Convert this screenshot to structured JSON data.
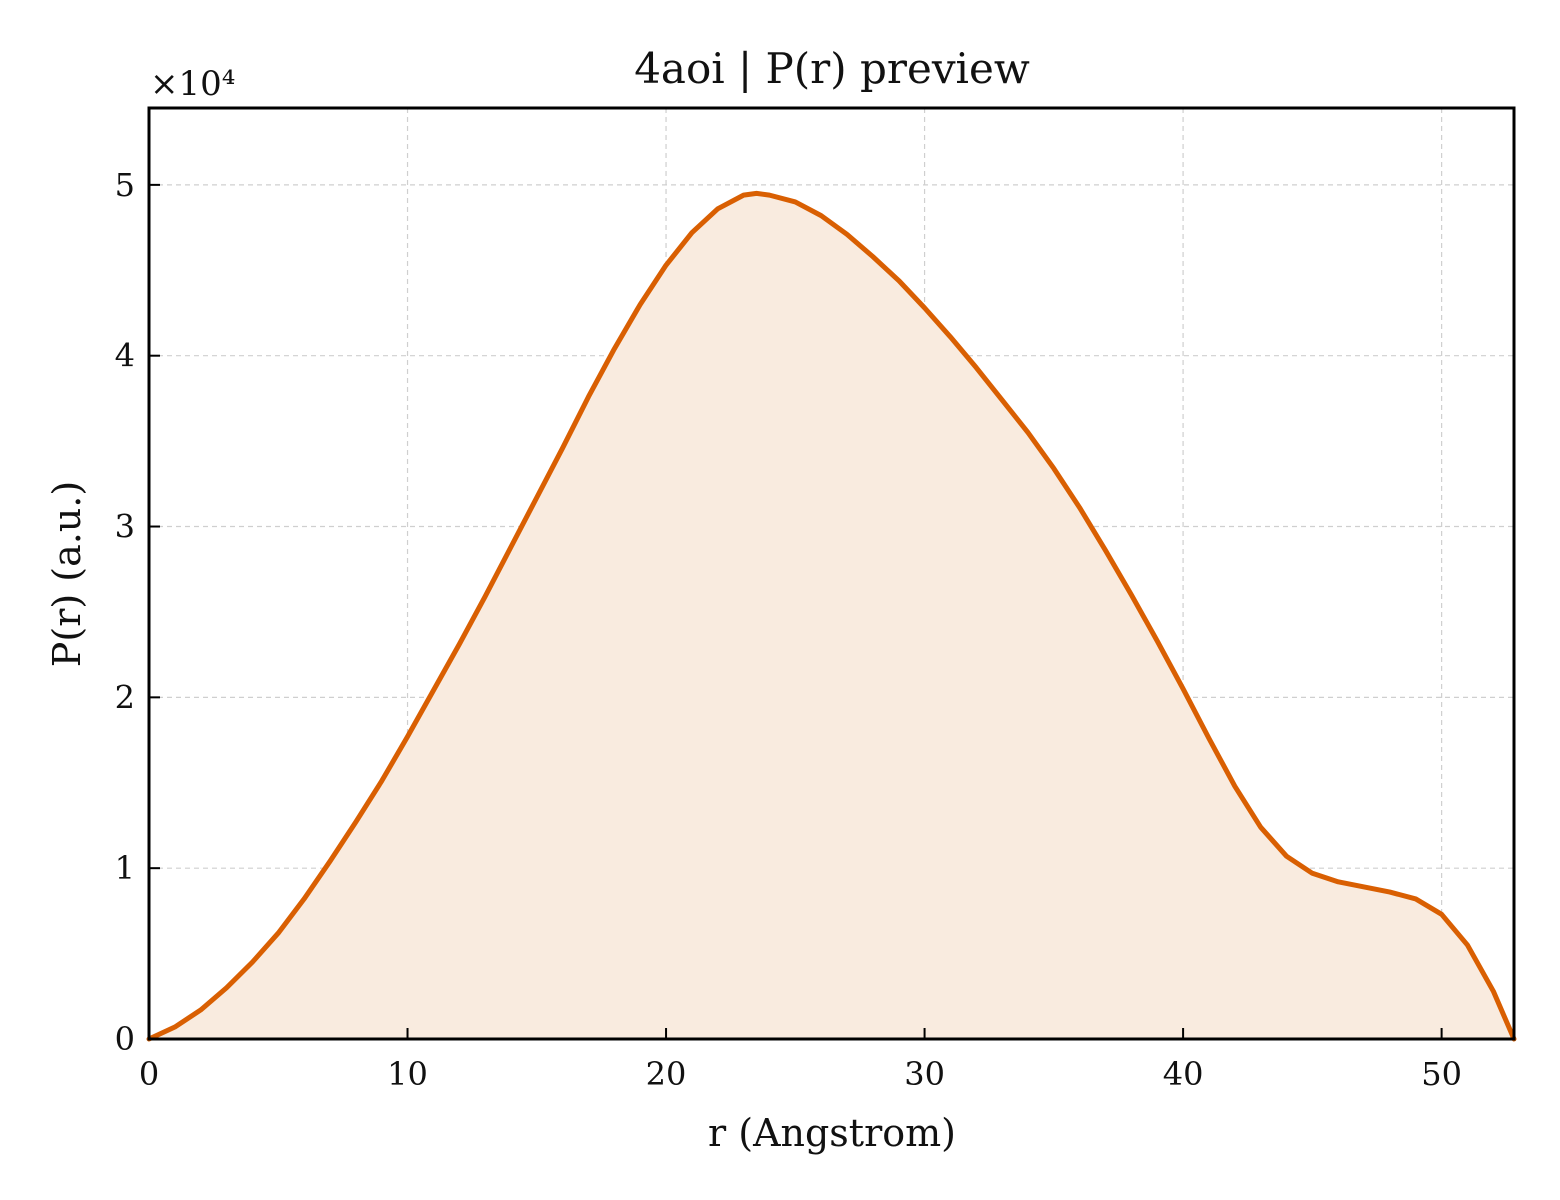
{
  "chart_data": {
    "type": "area",
    "title": "4aoi | P(r) preview",
    "xlabel": "r (Angstrom)",
    "ylabel": "P(r) (a.u.)",
    "y_multiplier_label": "×10⁴",
    "y_scale_factor": 10000,
    "xlim": [
      0,
      52.8
    ],
    "ylim": [
      0,
      5.45
    ],
    "xticks": [
      0,
      10,
      20,
      30,
      40,
      50
    ],
    "yticks": [
      0,
      1,
      2,
      3,
      4,
      5
    ],
    "xtick_labels": [
      "0",
      "10",
      "20",
      "30",
      "40",
      "50"
    ],
    "ytick_labels": [
      "0",
      "1",
      "2",
      "3",
      "4",
      "5"
    ],
    "grid": true,
    "line_color": "#d95f02",
    "fill_color": "#f9ebdf",
    "series": [
      {
        "x": [
          0,
          1,
          2,
          3,
          4,
          5,
          6,
          7,
          8,
          9,
          10,
          11,
          12,
          13,
          14,
          15,
          16,
          17,
          18,
          19,
          20,
          21,
          22,
          23,
          23.5,
          24,
          25,
          26,
          27,
          28,
          29,
          30,
          31,
          32,
          33,
          34,
          35,
          36,
          37,
          38,
          39,
          40,
          41,
          42,
          43,
          44,
          45,
          46,
          47,
          48,
          49,
          50,
          51,
          52,
          52.8
        ],
        "y": [
          0,
          0.07,
          0.17,
          0.3,
          0.45,
          0.62,
          0.82,
          1.04,
          1.27,
          1.51,
          1.77,
          2.04,
          2.31,
          2.59,
          2.88,
          3.17,
          3.46,
          3.76,
          4.04,
          4.3,
          4.53,
          4.72,
          4.86,
          4.94,
          4.95,
          4.94,
          4.9,
          4.82,
          4.71,
          4.58,
          4.44,
          4.28,
          4.11,
          3.93,
          3.74,
          3.55,
          3.34,
          3.11,
          2.86,
          2.6,
          2.33,
          2.05,
          1.76,
          1.48,
          1.24,
          1.07,
          0.97,
          0.92,
          0.89,
          0.86,
          0.82,
          0.73,
          0.55,
          0.28,
          0
        ]
      }
    ]
  }
}
